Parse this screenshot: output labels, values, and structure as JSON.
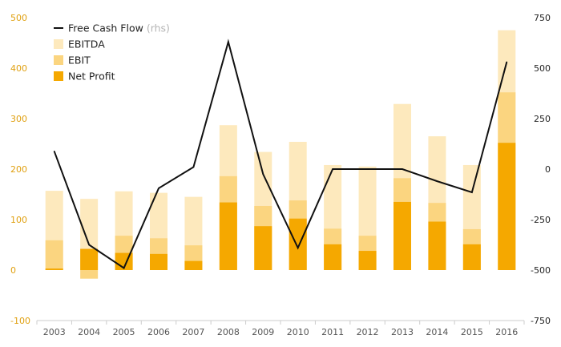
{
  "chart_data": {
    "type": "bar",
    "categories": [
      "2003",
      "2004",
      "2005",
      "2006",
      "2007",
      "2008",
      "2009",
      "2010",
      "2011",
      "2012",
      "2013",
      "2014",
      "2015",
      "2016"
    ],
    "series": [
      {
        "name": "EBITDA",
        "axis": "left",
        "color": "#fde9bd",
        "values": [
          157,
          141,
          156,
          153,
          145,
          287,
          234,
          254,
          208,
          205,
          329,
          265,
          208,
          475
        ]
      },
      {
        "name": "EBIT",
        "axis": "left",
        "color": "#fbd580",
        "values": [
          59,
          -17,
          68,
          63,
          49,
          186,
          127,
          138,
          82,
          68,
          182,
          133,
          81,
          352
        ]
      },
      {
        "name": "Net Profit",
        "axis": "left",
        "color": "#f5a800",
        "values": [
          3,
          42,
          34,
          32,
          18,
          134,
          87,
          102,
          51,
          38,
          135,
          96,
          51,
          252
        ]
      },
      {
        "name": "Free Cash Flow",
        "axis": "right",
        "type": "line",
        "color": "#111111",
        "values": [
          88,
          -375,
          -490,
          -95,
          10,
          630,
          -25,
          -390,
          0,
          0,
          0,
          -60,
          -115,
          530
        ]
      }
    ],
    "ylim_left": [
      -100,
      500
    ],
    "yticks_left": [
      "500",
      "400",
      "300",
      "200",
      "100",
      "0",
      "-100"
    ],
    "ylim_right": [
      -750,
      750
    ],
    "yticks_right": [
      "750",
      "500",
      "250",
      "0",
      "-250",
      "-500",
      "-750"
    ],
    "legend": {
      "position": "top-left",
      "entries": [
        {
          "label": "Free Cash Flow",
          "note": "(rhs)",
          "kind": "line",
          "color": "#111111"
        },
        {
          "label": "EBITDA",
          "kind": "box",
          "color": "#fde9bd"
        },
        {
          "label": "EBIT",
          "kind": "box",
          "color": "#fbd580"
        },
        {
          "label": "Net Profit",
          "kind": "box",
          "color": "#f5a800"
        }
      ]
    },
    "colors": {
      "left_axis_text": "#e0a010",
      "right_axis_text": "#222222",
      "axis_line": "#cccccc"
    }
  }
}
